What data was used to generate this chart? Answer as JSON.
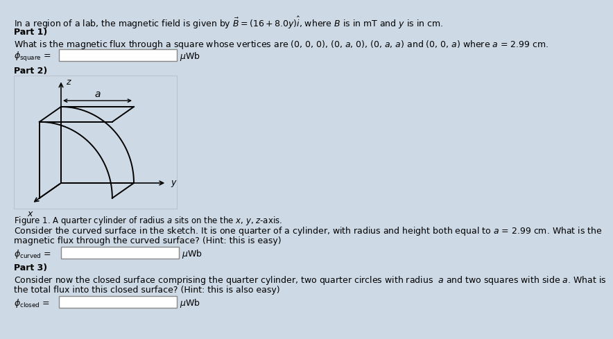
{
  "bg_color": "#cdd9e5",
  "title_line1": "In a region of a lab, the magnetic field is given by ",
  "title_line2": "$\\vec{B} = (16 + 8.0y)\\hat{i}$",
  "title_line3": ", where $B$ is in mT and $y$ is in cm.",
  "part1_label": "Part 1)",
  "part1_text": "What is the magnetic flux through a square whose vertices are (0, 0, 0), (0, $a$, 0), (0, $a$, $a$) and (0, 0, $a$) where $a$ = 2.99 cm.",
  "phi_square_label": "$\\phi_{\\mathrm{square}}$",
  "phi_curved_label": "$\\phi_{\\mathrm{curved}}$",
  "phi_closed_label": "$\\phi_{\\mathrm{closed}}$",
  "uwb_label": "$\\mu$Wb",
  "part2_label": "Part 2)",
  "figure_caption": "Figure 1. A quarter cylinder of radius $a$ sits on the the $x$, $y$, $z$-axis.",
  "curved_text1": "Consider the curved surface in the sketch. It is one quarter of a cylinder, with radius and height both equal to $a$ = 2.99 cm. What is the",
  "curved_text2": "magnetic flux through the curved surface? (Hint: this is easy)",
  "part3_label": "Part 3)",
  "closed_text1": "Consider now the closed surface comprising the quarter cylinder, two quarter circles with radius  $a$ and two squares with side $a$. What is",
  "closed_text2": "the total flux into this closed surface? (Hint: this is also easy)"
}
